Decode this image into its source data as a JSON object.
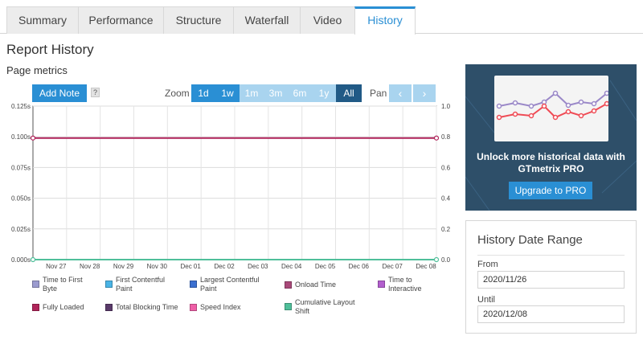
{
  "tabs": [
    {
      "label": "Summary"
    },
    {
      "label": "Performance"
    },
    {
      "label": "Structure"
    },
    {
      "label": "Waterfall"
    },
    {
      "label": "Video"
    },
    {
      "label": "History"
    }
  ],
  "heading": "Report History",
  "subheading": "Page metrics",
  "toolbar": {
    "add_note": "Add Note",
    "help": "?",
    "zoom_label": "Zoom",
    "zoom_options": [
      "1d",
      "1w",
      "1m",
      "3m",
      "6m",
      "1y",
      "All"
    ],
    "zoom_selected": "All",
    "pan_label": "Pan",
    "pan_prev": "‹",
    "pan_next": "›"
  },
  "chart_data": {
    "type": "line",
    "x": [
      "Nov 26",
      "Nov 27",
      "Nov 28",
      "Nov 29",
      "Nov 30",
      "Dec 01",
      "Dec 02",
      "Dec 03",
      "Dec 04",
      "Dec 05",
      "Dec 06",
      "Dec 07",
      "Dec 08"
    ],
    "x_tick_labels": [
      "Nov 27",
      "Nov 28",
      "Nov 29",
      "Nov 30",
      "Dec 01",
      "Dec 02",
      "Dec 03",
      "Dec 04",
      "Dec 05",
      "Dec 06",
      "Dec 07",
      "Dec 08"
    ],
    "y_left_ticks": [
      "0.125s",
      "0.100s",
      "0.075s",
      "0.050s",
      "0.025s",
      "0.000s"
    ],
    "y_right_ticks": [
      "1.0",
      "0.8",
      "0.6",
      "0.4",
      "0.2",
      "0.0"
    ],
    "ylim_left": [
      0,
      0.125
    ],
    "ylim_right": [
      0,
      1.0
    ],
    "grid": true,
    "series": [
      {
        "name": "Fully Loaded",
        "axis": "left",
        "color": "#b0245a",
        "points": [
          [
            "Nov 26",
            0.099
          ],
          [
            "Dec 08",
            0.099
          ]
        ]
      },
      {
        "name": "Cumulative Layout Shift",
        "axis": "right",
        "color": "#4fbf9a",
        "points": [
          [
            "Nov 26",
            0.0
          ],
          [
            "Dec 08",
            0.0
          ]
        ]
      }
    ]
  },
  "legend": [
    {
      "label": "Time to First Byte",
      "color": "#9b9bcf"
    },
    {
      "label": "First Contentful Paint",
      "color": "#4ab4e6"
    },
    {
      "label": "Largest Contentful Paint",
      "color": "#3b6fd0"
    },
    {
      "label": "Onload Time",
      "color": "#a9497a"
    },
    {
      "label": "Time to Interactive",
      "color": "#b35fce"
    },
    {
      "label": "Fully Loaded",
      "color": "#b0245a"
    },
    {
      "label": "Total Blocking Time",
      "color": "#5a3a6a"
    },
    {
      "label": "Speed Index",
      "color": "#ef5fa7"
    },
    {
      "label": "Cumulative Layout Shift",
      "color": "#4fbf9a"
    }
  ],
  "promo": {
    "text": "Unlock more historical data with GTmetrix PRO",
    "button": "Upgrade to PRO"
  },
  "date_range": {
    "title": "History Date Range",
    "from_label": "From",
    "from_value": "2020/11/26",
    "until_label": "Until",
    "until_value": "2020/12/08"
  },
  "colors": {
    "accent": "#2a8fd4",
    "accent_dark": "#215a86",
    "accent_light": "#a9d4ef"
  }
}
